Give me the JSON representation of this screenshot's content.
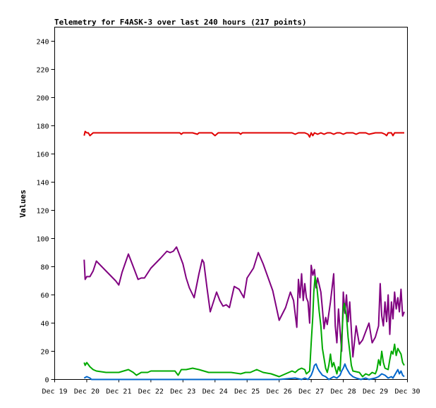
{
  "chart_data": {
    "type": "line",
    "title": "Telemetry for F4ASK-3 over last 240 hours (217 points)",
    "xlabel": "",
    "ylabel": "Values",
    "ylim": [
      0,
      250
    ],
    "yticks": [
      0,
      20,
      40,
      60,
      80,
      100,
      120,
      140,
      160,
      180,
      200,
      220,
      240
    ],
    "xlim": [
      19,
      30
    ],
    "xticks": [
      {
        "x": 19,
        "label": "Dec 19"
      },
      {
        "x": 20,
        "label": "Dec 20"
      },
      {
        "x": 21,
        "label": "Dec 21"
      },
      {
        "x": 22,
        "label": "Dec 22"
      },
      {
        "x": 23,
        "label": "Dec 23"
      },
      {
        "x": 24,
        "label": "Dec 24"
      },
      {
        "x": 25,
        "label": "Dec 25"
      },
      {
        "x": 26,
        "label": "Dec 26"
      },
      {
        "x": 27,
        "label": "Dec 27"
      },
      {
        "x": 28,
        "label": "Dec 28"
      },
      {
        "x": 29,
        "label": "Dec 29"
      },
      {
        "x": 30,
        "label": "Dec 30"
      }
    ],
    "grid": false,
    "legend": "none",
    "series": [
      {
        "color": "#e00000",
        "points": [
          [
            19.92,
            173
          ],
          [
            19.95,
            176
          ],
          [
            20.0,
            175
          ],
          [
            20.05,
            175
          ],
          [
            20.1,
            173
          ],
          [
            20.2,
            175
          ],
          [
            20.5,
            175
          ],
          [
            21.0,
            175
          ],
          [
            21.5,
            175
          ],
          [
            22.0,
            175
          ],
          [
            22.5,
            175
          ],
          [
            22.9,
            175
          ],
          [
            22.95,
            174
          ],
          [
            23.0,
            175
          ],
          [
            23.3,
            175
          ],
          [
            23.45,
            174
          ],
          [
            23.5,
            175
          ],
          [
            23.9,
            175
          ],
          [
            24.0,
            173
          ],
          [
            24.1,
            175
          ],
          [
            24.5,
            175
          ],
          [
            24.75,
            175
          ],
          [
            24.8,
            174
          ],
          [
            24.85,
            175
          ],
          [
            25.0,
            175
          ],
          [
            25.5,
            175
          ],
          [
            26.0,
            175
          ],
          [
            26.4,
            175
          ],
          [
            26.5,
            174
          ],
          [
            26.6,
            175
          ],
          [
            26.8,
            175
          ],
          [
            26.9,
            174
          ],
          [
            26.95,
            172
          ],
          [
            27.0,
            175
          ],
          [
            27.05,
            173
          ],
          [
            27.1,
            175
          ],
          [
            27.2,
            174
          ],
          [
            27.3,
            175
          ],
          [
            27.4,
            174
          ],
          [
            27.5,
            175
          ],
          [
            27.6,
            175
          ],
          [
            27.7,
            174
          ],
          [
            27.8,
            175
          ],
          [
            27.9,
            175
          ],
          [
            28.0,
            174
          ],
          [
            28.1,
            175
          ],
          [
            28.3,
            175
          ],
          [
            28.4,
            174
          ],
          [
            28.5,
            175
          ],
          [
            28.7,
            175
          ],
          [
            28.8,
            174
          ],
          [
            29.0,
            175
          ],
          [
            29.2,
            175
          ],
          [
            29.3,
            174
          ],
          [
            29.35,
            173
          ],
          [
            29.4,
            175
          ],
          [
            29.5,
            175
          ],
          [
            29.55,
            173
          ],
          [
            29.6,
            175
          ],
          [
            29.8,
            175
          ],
          [
            29.9,
            175
          ]
        ]
      },
      {
        "color": "#800080",
        "points": [
          [
            19.92,
            85
          ],
          [
            19.95,
            71
          ],
          [
            20.0,
            73
          ],
          [
            20.1,
            73
          ],
          [
            20.2,
            77
          ],
          [
            20.3,
            84
          ],
          [
            20.6,
            77
          ],
          [
            20.9,
            70
          ],
          [
            21.0,
            67
          ],
          [
            21.1,
            76
          ],
          [
            21.3,
            89
          ],
          [
            21.45,
            80
          ],
          [
            21.6,
            71
          ],
          [
            21.7,
            72
          ],
          [
            21.8,
            72
          ],
          [
            22.0,
            79
          ],
          [
            22.3,
            86
          ],
          [
            22.5,
            91
          ],
          [
            22.6,
            90
          ],
          [
            22.7,
            91
          ],
          [
            22.8,
            94
          ],
          [
            22.9,
            88
          ],
          [
            23.0,
            82
          ],
          [
            23.1,
            72
          ],
          [
            23.2,
            65
          ],
          [
            23.35,
            58
          ],
          [
            23.5,
            75
          ],
          [
            23.6,
            85
          ],
          [
            23.65,
            83
          ],
          [
            23.75,
            65
          ],
          [
            23.85,
            48
          ],
          [
            23.95,
            55
          ],
          [
            24.05,
            62
          ],
          [
            24.15,
            56
          ],
          [
            24.25,
            52
          ],
          [
            24.35,
            53
          ],
          [
            24.45,
            51
          ],
          [
            24.6,
            66
          ],
          [
            24.75,
            64
          ],
          [
            24.9,
            58
          ],
          [
            25.0,
            72
          ],
          [
            25.2,
            79
          ],
          [
            25.35,
            90
          ],
          [
            25.5,
            82
          ],
          [
            25.8,
            63
          ],
          [
            26.0,
            42
          ],
          [
            26.2,
            51
          ],
          [
            26.35,
            62
          ],
          [
            26.45,
            56
          ],
          [
            26.55,
            37
          ],
          [
            26.6,
            71
          ],
          [
            26.65,
            58
          ],
          [
            26.7,
            75
          ],
          [
            26.75,
            56
          ],
          [
            26.8,
            68
          ],
          [
            26.85,
            58
          ],
          [
            26.9,
            55
          ],
          [
            26.95,
            40
          ],
          [
            27.0,
            81
          ],
          [
            27.05,
            74
          ],
          [
            27.1,
            78
          ],
          [
            27.15,
            65
          ],
          [
            27.2,
            72
          ],
          [
            27.3,
            62
          ],
          [
            27.35,
            50
          ],
          [
            27.4,
            36
          ],
          [
            27.45,
            44
          ],
          [
            27.5,
            39
          ],
          [
            27.6,
            55
          ],
          [
            27.7,
            75
          ],
          [
            27.75,
            38
          ],
          [
            27.8,
            26
          ],
          [
            27.85,
            50
          ],
          [
            27.9,
            35
          ],
          [
            27.95,
            20
          ],
          [
            28.0,
            62
          ],
          [
            28.05,
            47
          ],
          [
            28.1,
            60
          ],
          [
            28.15,
            41
          ],
          [
            28.2,
            55
          ],
          [
            28.3,
            16
          ],
          [
            28.4,
            38
          ],
          [
            28.5,
            25
          ],
          [
            28.6,
            28
          ],
          [
            28.7,
            34
          ],
          [
            28.8,
            40
          ],
          [
            28.9,
            26
          ],
          [
            29.0,
            30
          ],
          [
            29.1,
            38
          ],
          [
            29.15,
            68
          ],
          [
            29.2,
            45
          ],
          [
            29.25,
            38
          ],
          [
            29.3,
            55
          ],
          [
            29.35,
            41
          ],
          [
            29.4,
            60
          ],
          [
            29.45,
            32
          ],
          [
            29.5,
            55
          ],
          [
            29.55,
            43
          ],
          [
            29.6,
            62
          ],
          [
            29.65,
            50
          ],
          [
            29.7,
            58
          ],
          [
            29.75,
            48
          ],
          [
            29.8,
            64
          ],
          [
            29.85,
            45
          ],
          [
            29.9,
            48
          ]
        ]
      },
      {
        "color": "#00aa00",
        "points": [
          [
            19.92,
            12
          ],
          [
            19.95,
            10
          ],
          [
            20.0,
            12
          ],
          [
            20.1,
            9
          ],
          [
            20.2,
            7
          ],
          [
            20.3,
            6
          ],
          [
            20.6,
            5
          ],
          [
            21.0,
            5
          ],
          [
            21.3,
            7
          ],
          [
            21.45,
            5
          ],
          [
            21.55,
            3
          ],
          [
            21.7,
            5
          ],
          [
            21.9,
            5
          ],
          [
            22.0,
            6
          ],
          [
            22.3,
            6
          ],
          [
            22.6,
            6
          ],
          [
            22.75,
            6
          ],
          [
            22.85,
            3
          ],
          [
            22.95,
            7
          ],
          [
            23.1,
            7
          ],
          [
            23.3,
            8
          ],
          [
            23.5,
            7
          ],
          [
            23.65,
            6
          ],
          [
            23.8,
            5
          ],
          [
            24.1,
            5
          ],
          [
            24.5,
            5
          ],
          [
            24.8,
            4
          ],
          [
            24.95,
            5
          ],
          [
            25.1,
            5
          ],
          [
            25.3,
            7
          ],
          [
            25.5,
            5
          ],
          [
            25.75,
            4
          ],
          [
            26.0,
            2
          ],
          [
            26.2,
            4
          ],
          [
            26.4,
            6
          ],
          [
            26.5,
            5
          ],
          [
            26.6,
            7
          ],
          [
            26.7,
            8
          ],
          [
            26.8,
            7
          ],
          [
            26.85,
            4
          ],
          [
            26.95,
            6
          ],
          [
            27.0,
            26
          ],
          [
            27.05,
            45
          ],
          [
            27.08,
            62
          ],
          [
            27.12,
            73
          ],
          [
            27.18,
            65
          ],
          [
            27.25,
            48
          ],
          [
            27.3,
            38
          ],
          [
            27.35,
            22
          ],
          [
            27.4,
            15
          ],
          [
            27.45,
            8
          ],
          [
            27.5,
            5
          ],
          [
            27.55,
            10
          ],
          [
            27.6,
            18
          ],
          [
            27.65,
            9
          ],
          [
            27.7,
            12
          ],
          [
            27.8,
            4
          ],
          [
            27.85,
            9
          ],
          [
            27.9,
            6
          ],
          [
            28.0,
            50
          ],
          [
            28.03,
            54
          ],
          [
            28.1,
            45
          ],
          [
            28.15,
            30
          ],
          [
            28.2,
            20
          ],
          [
            28.25,
            10
          ],
          [
            28.3,
            6
          ],
          [
            28.5,
            5
          ],
          [
            28.6,
            2
          ],
          [
            28.7,
            4
          ],
          [
            28.8,
            3
          ],
          [
            28.9,
            5
          ],
          [
            29.0,
            4
          ],
          [
            29.05,
            7
          ],
          [
            29.1,
            14
          ],
          [
            29.15,
            10
          ],
          [
            29.2,
            20
          ],
          [
            29.25,
            12
          ],
          [
            29.3,
            8
          ],
          [
            29.4,
            7
          ],
          [
            29.45,
            14
          ],
          [
            29.5,
            20
          ],
          [
            29.55,
            18
          ],
          [
            29.6,
            25
          ],
          [
            29.65,
            17
          ],
          [
            29.7,
            22
          ],
          [
            29.75,
            20
          ],
          [
            29.8,
            18
          ],
          [
            29.85,
            12
          ],
          [
            29.9,
            10
          ]
        ]
      },
      {
        "color": "#0066cc",
        "points": [
          [
            19.92,
            1
          ],
          [
            20.0,
            2
          ],
          [
            20.1,
            1
          ],
          [
            20.15,
            0
          ],
          [
            20.5,
            0
          ],
          [
            21.0,
            0
          ],
          [
            22.0,
            0
          ],
          [
            23.0,
            0
          ],
          [
            24.0,
            0
          ],
          [
            25.0,
            0
          ],
          [
            26.0,
            0
          ],
          [
            26.5,
            1
          ],
          [
            26.7,
            0
          ],
          [
            26.8,
            1
          ],
          [
            26.9,
            0
          ],
          [
            27.0,
            3
          ],
          [
            27.05,
            6
          ],
          [
            27.1,
            10
          ],
          [
            27.15,
            11
          ],
          [
            27.2,
            8
          ],
          [
            27.25,
            6
          ],
          [
            27.35,
            3
          ],
          [
            27.45,
            2
          ],
          [
            27.55,
            0
          ],
          [
            27.7,
            2
          ],
          [
            27.8,
            1
          ],
          [
            27.9,
            3
          ],
          [
            27.95,
            6
          ],
          [
            28.0,
            8
          ],
          [
            28.05,
            11
          ],
          [
            28.1,
            8
          ],
          [
            28.15,
            6
          ],
          [
            28.2,
            4
          ],
          [
            28.3,
            2
          ],
          [
            28.4,
            1
          ],
          [
            28.55,
            0
          ],
          [
            28.7,
            1
          ],
          [
            28.8,
            0
          ],
          [
            29.0,
            1
          ],
          [
            29.1,
            2
          ],
          [
            29.2,
            4
          ],
          [
            29.3,
            3
          ],
          [
            29.4,
            1
          ],
          [
            29.5,
            2
          ],
          [
            29.55,
            1
          ],
          [
            29.6,
            3
          ],
          [
            29.65,
            5
          ],
          [
            29.7,
            7
          ],
          [
            29.75,
            4
          ],
          [
            29.8,
            6
          ],
          [
            29.85,
            3
          ],
          [
            29.9,
            2
          ]
        ]
      }
    ]
  }
}
